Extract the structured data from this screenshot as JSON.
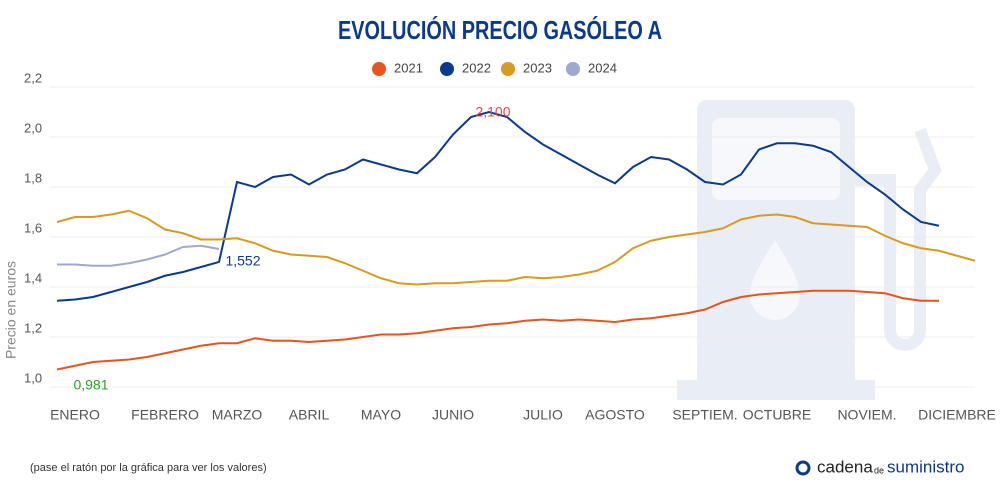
{
  "chart_data": {
    "type": "line",
    "title": "EVOLUCIÓN PRECIO GASÓLEO A",
    "y_label": "Precio en euros",
    "categories": [
      null,
      "ENERO",
      null,
      null,
      null,
      null,
      "FEBRERO",
      null,
      null,
      null,
      "MARZO",
      null,
      null,
      null,
      "ABRIL",
      null,
      null,
      null,
      "MAYO",
      null,
      null,
      null,
      "JUNIO",
      null,
      null,
      null,
      null,
      "JULIO",
      null,
      null,
      null,
      "AGOSTO",
      null,
      null,
      null,
      null,
      "SEPTIEM.",
      null,
      null,
      null,
      "OCTUBRE",
      null,
      null,
      null,
      null,
      "NOVIEM.",
      null,
      null,
      null,
      null,
      "DICIEMBRE",
      null
    ],
    "series": [
      {
        "name": "2021",
        "color": "#e8541c",
        "values": [
          1.07,
          1.085,
          1.1,
          1.105,
          1.11,
          1.12,
          1.135,
          1.15,
          1.165,
          1.175,
          1.175,
          1.195,
          1.185,
          1.185,
          1.18,
          1.185,
          1.19,
          1.2,
          1.21,
          1.21,
          1.215,
          1.225,
          1.235,
          1.24,
          1.25,
          1.255,
          1.265,
          1.27,
          1.265,
          1.27,
          1.265,
          1.26,
          1.27,
          1.275,
          1.285,
          1.295,
          1.31,
          1.34,
          1.36,
          1.37,
          1.375,
          1.38,
          1.385,
          1.385,
          1.385,
          1.38,
          1.375,
          1.355,
          1.345,
          1.345,
          null,
          null
        ]
      },
      {
        "name": "2022",
        "color": "#0a3a8c",
        "values": [
          1.345,
          1.35,
          1.36,
          1.38,
          1.4,
          1.42,
          1.445,
          1.46,
          1.48,
          1.5,
          1.82,
          1.8,
          1.84,
          1.85,
          1.81,
          1.85,
          1.87,
          1.91,
          1.89,
          1.87,
          1.855,
          1.92,
          2.01,
          2.08,
          2.1,
          2.08,
          2.02,
          1.97,
          1.93,
          1.89,
          1.85,
          1.815,
          1.88,
          1.92,
          1.91,
          1.87,
          1.82,
          1.81,
          1.85,
          1.95,
          1.975,
          1.975,
          1.965,
          1.94,
          1.88,
          1.82,
          1.77,
          1.71,
          1.66,
          1.645,
          null,
          null
        ]
      },
      {
        "name": "2023",
        "color": "#d99a22",
        "values": [
          1.66,
          1.68,
          1.68,
          1.69,
          1.705,
          1.675,
          1.63,
          1.615,
          1.59,
          1.59,
          1.595,
          1.575,
          1.545,
          1.53,
          1.525,
          1.52,
          1.495,
          1.465,
          1.435,
          1.415,
          1.41,
          1.415,
          1.415,
          1.42,
          1.425,
          1.425,
          1.44,
          1.435,
          1.44,
          1.45,
          1.465,
          1.5,
          1.555,
          1.585,
          1.6,
          1.61,
          1.62,
          1.635,
          1.67,
          1.685,
          1.69,
          1.68,
          1.655,
          1.65,
          1.645,
          1.64,
          1.605,
          1.575,
          1.555,
          1.545,
          1.525,
          1.505
        ]
      },
      {
        "name": "2024",
        "color": "#9fa9d0",
        "values": [
          1.49,
          1.49,
          1.485,
          1.485,
          1.495,
          1.51,
          1.53,
          1.56,
          1.565,
          1.552,
          null,
          null,
          null,
          null,
          null,
          null,
          null,
          null,
          null,
          null,
          null,
          null,
          null,
          null,
          null,
          null,
          null,
          null,
          null,
          null,
          null,
          null,
          null,
          null,
          null,
          null,
          null,
          null,
          null,
          null,
          null,
          null,
          null,
          null,
          null,
          null,
          null,
          null,
          null,
          null,
          null,
          null
        ]
      }
    ],
    "ylim": [
      0.96,
      2.2
    ],
    "yticks": [
      {
        "value": 1.0,
        "label": "1,0"
      },
      {
        "value": 1.2,
        "label": "1,2"
      },
      {
        "value": 1.4,
        "label": "1,4"
      },
      {
        "value": 1.6,
        "label": "1,6"
      },
      {
        "value": 1.8,
        "label": "1,8"
      },
      {
        "value": 2.0,
        "label": "2,0"
      },
      {
        "value": 2.2,
        "label": "2,2"
      }
    ],
    "grid": true,
    "legend": "top",
    "annotations": [
      {
        "text": "2,100",
        "color": "#e04848"
      },
      {
        "text": "1,552",
        "color": "#0a3a8c"
      },
      {
        "text": "0,981",
        "color": "#2ca02c"
      }
    ],
    "footer_note": "(pase el ratón por la gráfica para ver los valores)",
    "logo": {
      "part1": "cadena",
      "part2": "de",
      "part3": "suministro"
    }
  }
}
